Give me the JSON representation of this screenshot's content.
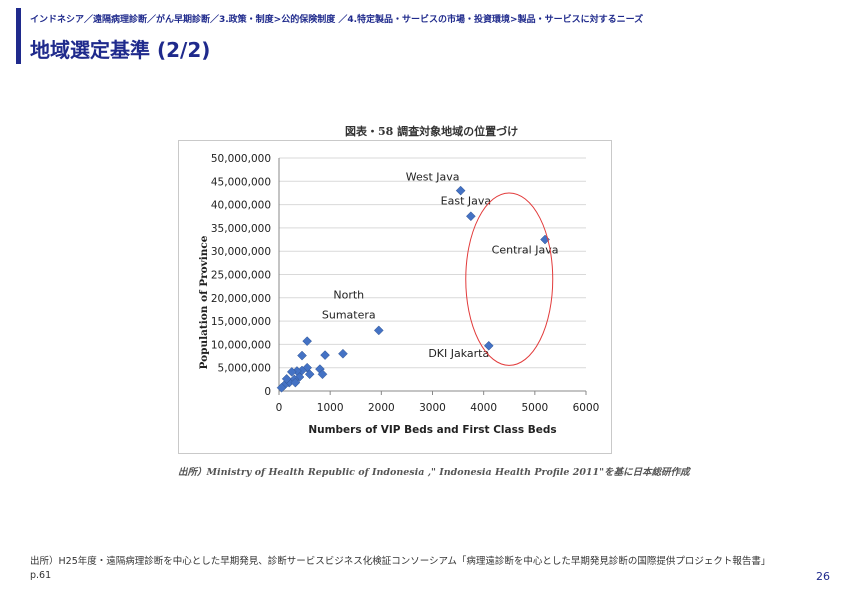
{
  "header": {
    "breadcrumb": "インドネシア／遠隔病理診断／がん早期診断／3.政策・制度>公的保険制度 ／4.特定製品・サービスの市場・投資環境>製品・サービスに対するニーズ",
    "title": "地域選定基準 (2/2)"
  },
  "figure": {
    "title": "図表・58 調査対象地域の位置づけ",
    "source": "出所）Ministry of Health Republic of Indonesia ,\" Indonesia Health Profile 2011\"を基に日本総研作成"
  },
  "footer": {
    "source": "出所）H25年度・遠隔病理診断を中心とした早期発見、診断サービスビジネス化検証コンソーシアム「病理遠診断を中心とした早期発見診断の国際提供プロジェクト報告書」p.61",
    "page_number": "26"
  },
  "colors": {
    "accent": "#1f2a8c",
    "marker": "#4472c4",
    "circle": "#e23b3b",
    "grid": "#d9d9d9"
  },
  "chart_data": {
    "type": "scatter",
    "xlabel": "Numbers of VIP Beds and First Class Beds",
    "ylabel": "Population of Province",
    "xlim": [
      0,
      6000
    ],
    "ylim": [
      0,
      50000000
    ],
    "xticks": [
      0,
      1000,
      2000,
      3000,
      4000,
      5000,
      6000
    ],
    "yticks": [
      0,
      5000000,
      10000000,
      15000000,
      20000000,
      25000000,
      30000000,
      35000000,
      40000000,
      45000000,
      50000000
    ],
    "ytick_labels": [
      "0",
      "5,000,000",
      "10,000,000",
      "15,000,000",
      "20,000,000",
      "25,000,000",
      "30,000,000",
      "35,000,000",
      "40,000,000",
      "45,000,000",
      "50,000,000"
    ],
    "grid": true,
    "points": [
      {
        "x": 3550,
        "y": 43000000,
        "label": "West Java"
      },
      {
        "x": 3750,
        "y": 37500000,
        "label": "East Java"
      },
      {
        "x": 5200,
        "y": 32500000,
        "label": "Central Java"
      },
      {
        "x": 1950,
        "y": 13000000,
        "label": "North\nSumatera"
      },
      {
        "x": 4100,
        "y": 9700000,
        "label": "DKI Jakarta"
      },
      {
        "x": 1250,
        "y": 8000000,
        "label": ""
      },
      {
        "x": 900,
        "y": 7700000,
        "label": ""
      },
      {
        "x": 550,
        "y": 10700000,
        "label": ""
      },
      {
        "x": 450,
        "y": 7600000,
        "label": ""
      },
      {
        "x": 550,
        "y": 5000000,
        "label": ""
      },
      {
        "x": 800,
        "y": 4700000,
        "label": ""
      },
      {
        "x": 850,
        "y": 3600000,
        "label": ""
      },
      {
        "x": 600,
        "y": 3600000,
        "label": ""
      },
      {
        "x": 450,
        "y": 4400000,
        "label": ""
      },
      {
        "x": 400,
        "y": 3000000,
        "label": ""
      },
      {
        "x": 350,
        "y": 4300000,
        "label": ""
      },
      {
        "x": 300,
        "y": 2500000,
        "label": ""
      },
      {
        "x": 250,
        "y": 4100000,
        "label": ""
      },
      {
        "x": 200,
        "y": 1800000,
        "label": ""
      },
      {
        "x": 150,
        "y": 2600000,
        "label": ""
      },
      {
        "x": 100,
        "y": 1200000,
        "label": ""
      },
      {
        "x": 50,
        "y": 700000,
        "label": ""
      },
      {
        "x": 320,
        "y": 1800000,
        "label": ""
      }
    ],
    "highlight": {
      "type": "circle",
      "cx": 4500,
      "cy": 24000000,
      "rx": 850,
      "ry": 18500000
    }
  }
}
